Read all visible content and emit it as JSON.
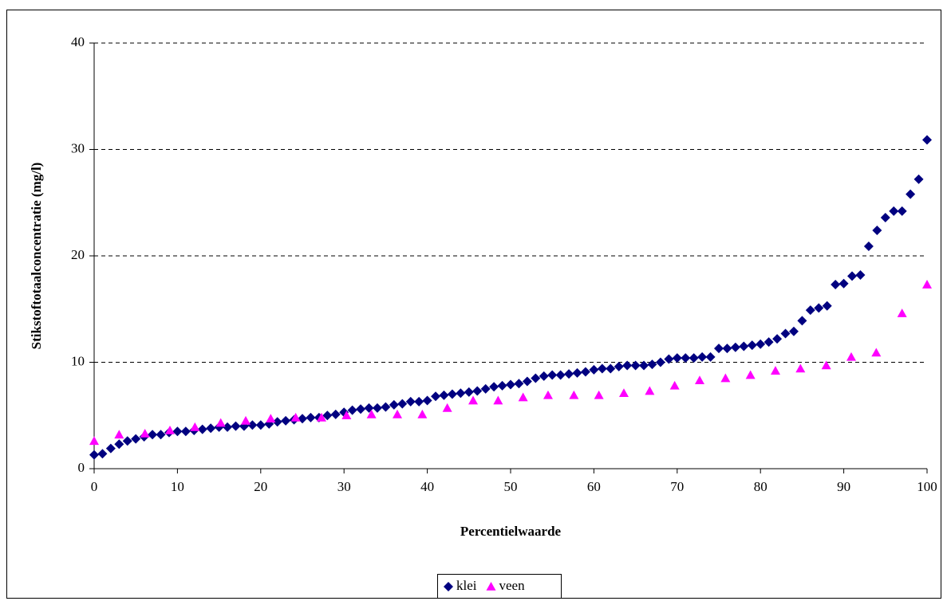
{
  "chart_data": {
    "type": "scatter",
    "x_label": "Percentielwaarde",
    "y_label": "Stikstoftotaalconcentratie (mg/l)",
    "xlim": [
      0,
      100
    ],
    "xticks": [
      0,
      10,
      20,
      30,
      40,
      50,
      60,
      70,
      80,
      90,
      100
    ],
    "ylim": [
      0,
      40
    ],
    "yticks": [
      0,
      10,
      20,
      30,
      40
    ],
    "grid": true,
    "legend": "bottom",
    "series": [
      {
        "name": "klei",
        "color": "#000080",
        "marker": "diamond",
        "x": [
          0,
          1,
          2,
          3,
          4,
          5,
          6,
          7,
          8,
          9,
          10,
          11,
          12,
          13,
          14,
          15,
          16,
          17,
          18,
          19,
          20,
          21,
          22,
          23,
          24,
          25,
          26,
          27,
          28,
          29,
          30,
          31,
          32,
          33,
          34,
          35,
          36,
          37,
          38,
          39,
          40,
          41,
          42,
          43,
          44,
          45,
          46,
          47,
          48,
          49,
          50,
          51,
          52,
          53,
          54,
          55,
          56,
          57,
          58,
          59,
          60,
          61,
          62,
          63,
          64,
          65,
          66,
          67,
          68,
          69,
          70,
          71,
          72,
          73,
          74,
          75,
          76,
          77,
          78,
          79,
          80,
          81,
          82,
          83,
          84,
          85,
          86,
          87,
          88,
          89,
          90,
          91,
          92,
          93,
          94,
          95,
          96,
          97,
          98,
          99,
          100
        ],
        "values": [
          1.3,
          1.4,
          1.9,
          2.3,
          2.6,
          2.8,
          3.0,
          3.2,
          3.2,
          3.4,
          3.5,
          3.5,
          3.6,
          3.7,
          3.8,
          3.9,
          3.9,
          4.0,
          4.0,
          4.1,
          4.1,
          4.2,
          4.4,
          4.5,
          4.6,
          4.7,
          4.8,
          4.8,
          5.0,
          5.1,
          5.3,
          5.5,
          5.6,
          5.7,
          5.7,
          5.8,
          6.0,
          6.1,
          6.3,
          6.3,
          6.4,
          6.8,
          6.9,
          7.0,
          7.1,
          7.2,
          7.3,
          7.5,
          7.7,
          7.8,
          7.9,
          8.0,
          8.2,
          8.5,
          8.7,
          8.8,
          8.8,
          8.9,
          9.0,
          9.1,
          9.3,
          9.4,
          9.4,
          9.6,
          9.7,
          9.7,
          9.7,
          9.8,
          10.0,
          10.3,
          10.4,
          10.4,
          10.4,
          10.5,
          10.5,
          11.3,
          11.3,
          11.4,
          11.5,
          11.6,
          11.7,
          11.9,
          12.2,
          12.7,
          12.9,
          13.9,
          14.9,
          15.1,
          15.3,
          17.3,
          17.4,
          18.1,
          18.2,
          20.9,
          22.4,
          23.6,
          24.2,
          24.2,
          25.8,
          27.2,
          30.9
        ]
      },
      {
        "name": "veen",
        "color": "#ff00ff",
        "marker": "triangle",
        "x": [
          0,
          3,
          6.1,
          9.1,
          12.1,
          15.2,
          18.2,
          21.2,
          24.2,
          27.3,
          30.3,
          33.3,
          36.4,
          39.4,
          42.4,
          45.5,
          48.5,
          51.5,
          54.5,
          57.6,
          60.6,
          63.6,
          66.7,
          69.7,
          72.7,
          75.8,
          78.8,
          81.8,
          84.8,
          87.9,
          90.9,
          93.9,
          97,
          100
        ],
        "values": [
          2.6,
          3.2,
          3.3,
          3.6,
          3.9,
          4.3,
          4.5,
          4.7,
          4.8,
          4.8,
          5.0,
          5.1,
          5.1,
          5.1,
          5.7,
          6.4,
          6.4,
          6.7,
          6.9,
          6.9,
          6.9,
          7.1,
          7.3,
          7.8,
          8.3,
          8.5,
          8.8,
          9.2,
          9.4,
          9.7,
          10.5,
          10.9,
          14.6,
          17.3
        ]
      }
    ]
  }
}
